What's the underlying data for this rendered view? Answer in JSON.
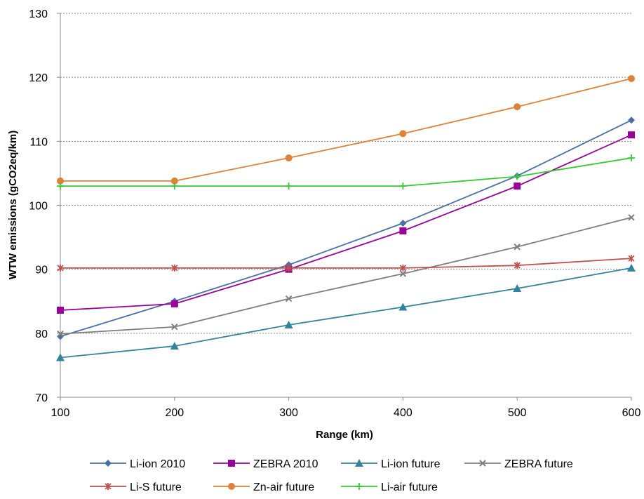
{
  "chart_data": {
    "type": "line",
    "title": "",
    "xlabel": "Range (km)",
    "ylabel": "WTW emissions (gCO2eq/km)",
    "x": [
      100,
      200,
      300,
      400,
      500,
      600
    ],
    "xlim": [
      100,
      600
    ],
    "ylim": [
      70,
      130
    ],
    "xticks": [
      "100",
      "200",
      "300",
      "400",
      "500",
      "600"
    ],
    "yticks": [
      "70",
      "80",
      "90",
      "100",
      "110",
      "120",
      "130"
    ],
    "grid": "horizontal dotted",
    "legend_position": "bottom",
    "series": [
      {
        "name": "Li-ion 2010",
        "color": "#4A6FA5",
        "marker": "diamond",
        "values": [
          79.5,
          85,
          90.7,
          97.2,
          104.6,
          113.3
        ]
      },
      {
        "name": "ZEBRA 2010",
        "color": "#990099",
        "marker": "square",
        "values": [
          83.6,
          84.6,
          90,
          96,
          103,
          111
        ]
      },
      {
        "name": "Li-ion future",
        "color": "#31849B",
        "marker": "triangle",
        "values": [
          76.2,
          78,
          81.3,
          84.1,
          87,
          90.2
        ]
      },
      {
        "name": "ZEBRA future",
        "color": "#7F7F7F",
        "marker": "x",
        "values": [
          79.9,
          81,
          85.4,
          89.3,
          93.5,
          98.1
        ]
      },
      {
        "name": "Li-S future",
        "color": "#C0504D",
        "marker": "star",
        "values": [
          90.2,
          90.2,
          90.2,
          90.2,
          90.6,
          91.7
        ]
      },
      {
        "name": "Zn-air future",
        "color": "#E0813A",
        "marker": "circle",
        "values": [
          103.8,
          103.8,
          107.4,
          111.2,
          115.4,
          119.8
        ]
      },
      {
        "name": "Li-air future",
        "color": "#33CC33",
        "marker": "plus",
        "values": [
          103,
          103,
          103,
          103,
          104.5,
          107.4
        ]
      }
    ]
  }
}
